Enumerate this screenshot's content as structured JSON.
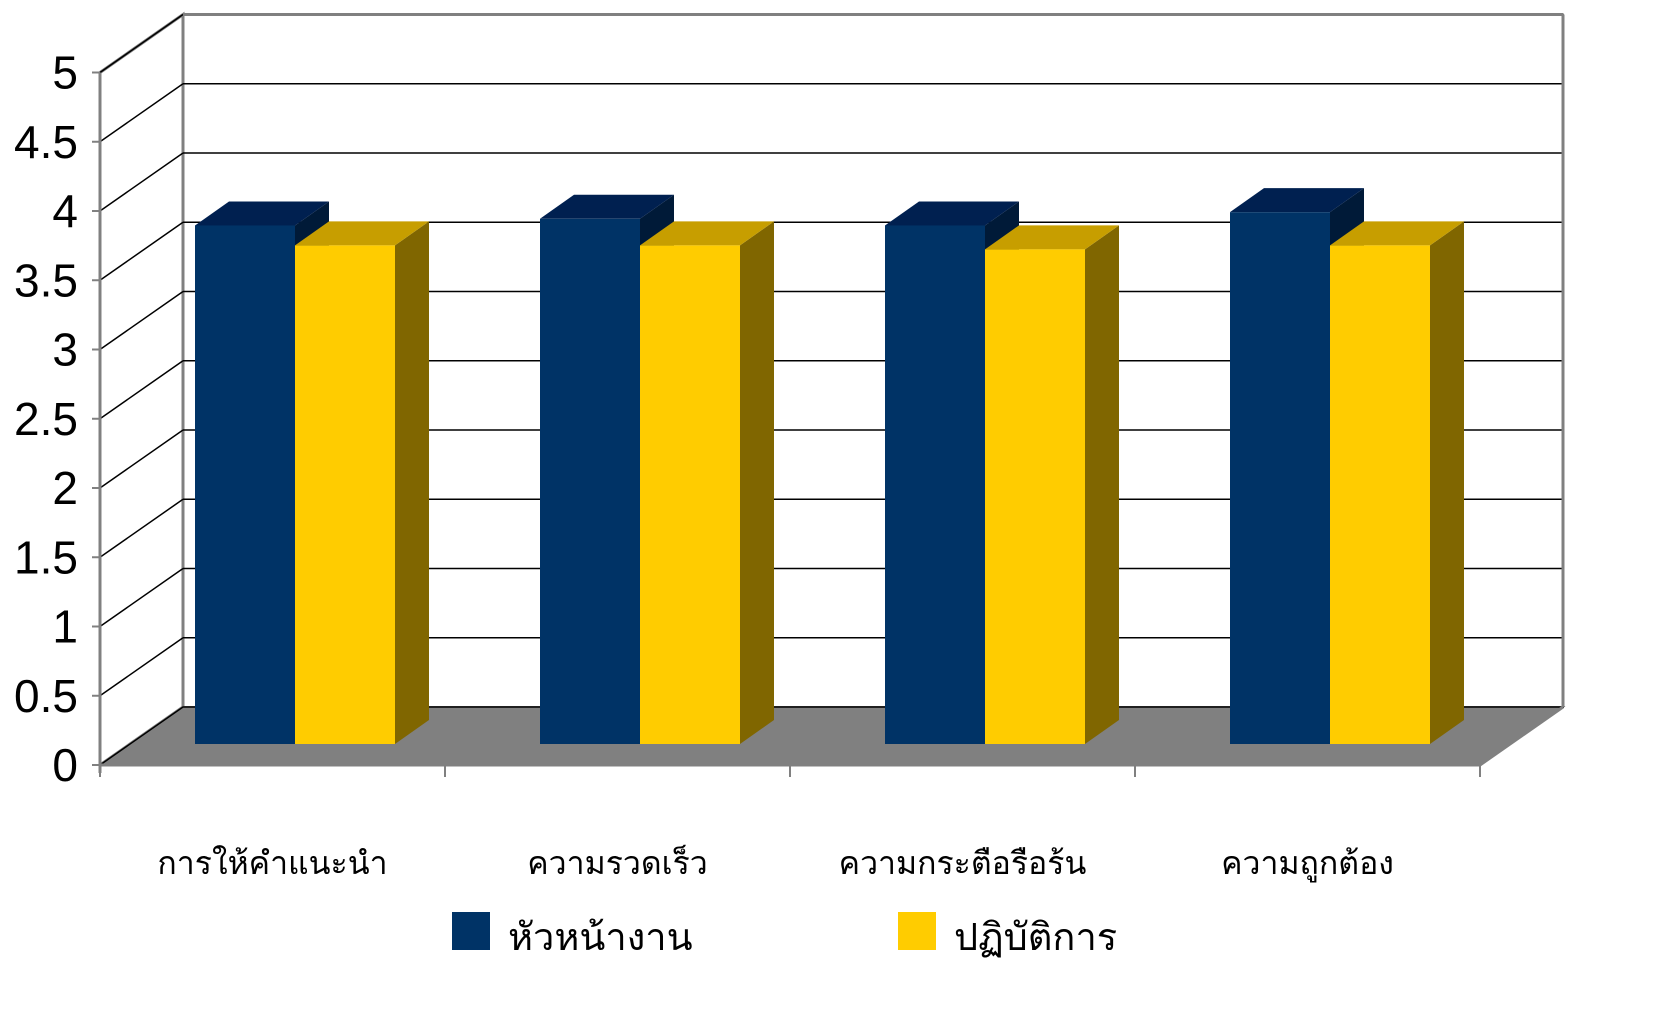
{
  "chart_data": {
    "type": "bar",
    "title": "",
    "xlabel": "",
    "ylabel": "",
    "categories": [
      "การให้คำแนะนำ",
      "ความรวดเร็ว",
      "ความกระตือรือร้น",
      "ความถูกต้อง"
    ],
    "series": [
      {
        "name": "หัวหน้างาน",
        "values": [
          3.9,
          3.95,
          3.9,
          4.0
        ],
        "color": "#003366",
        "top_color": "#002050",
        "side_color": "#001a38"
      },
      {
        "name": "ปฏิบัติการ",
        "values": [
          3.75,
          3.75,
          3.72,
          3.75
        ],
        "color": "#ffcc00",
        "top_color": "#c79e00",
        "side_color": "#806600"
      }
    ],
    "y_ticks": [
      "0",
      "0.5",
      "1",
      "1.5",
      "2",
      "2.5",
      "3",
      "3.5",
      "4",
      "4.5",
      "5"
    ],
    "ylim": [
      0,
      5
    ],
    "grid": true,
    "three_d": true,
    "floor_color": "#808080",
    "legend_position": "bottom"
  }
}
